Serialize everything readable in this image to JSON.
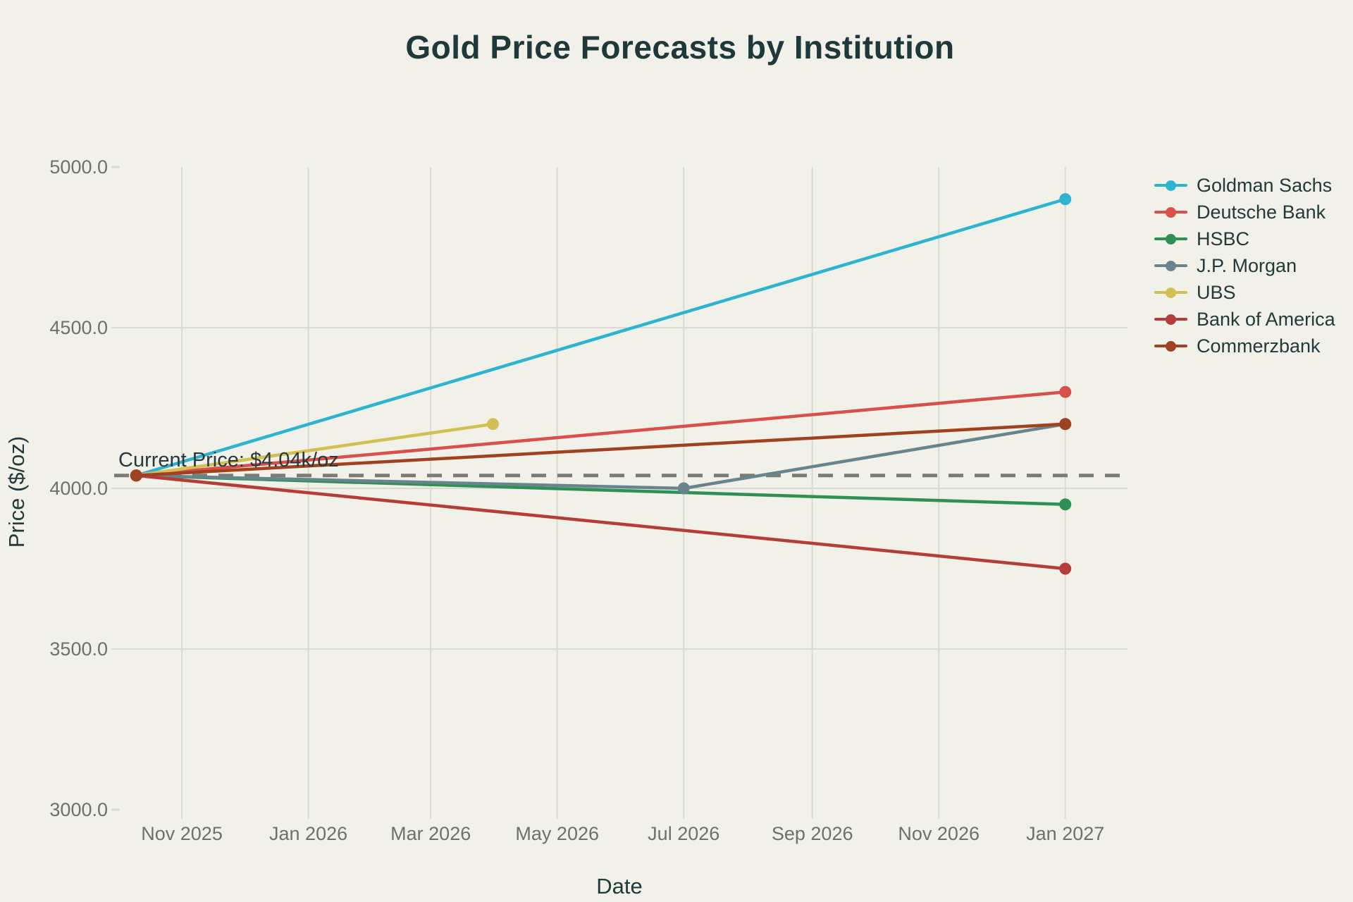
{
  "title": "Gold Price Forecasts by Institution",
  "colors": {
    "background": "#f1f1e9",
    "title_text": "#1e383c",
    "axis_label_text": "#213a3c",
    "tick_text": "#6d716c",
    "grid": "#d9dad2",
    "dashed_line": "#7c7c76",
    "annotation_text": "#27393b"
  },
  "chart_data": {
    "type": "line",
    "title": "Gold Price Forecasts by Institution",
    "xlabel": "Date",
    "ylabel": "Price ($/oz)",
    "legend_position": "right",
    "grid": true,
    "x_domain": [
      "2025-09-28",
      "2027-01-31"
    ],
    "ylim": [
      3000,
      5000
    ],
    "x_ticks": [
      {
        "date": "2025-11-01",
        "label": "Nov 2025"
      },
      {
        "date": "2026-01-01",
        "label": "Jan 2026"
      },
      {
        "date": "2026-03-01",
        "label": "Mar 2026"
      },
      {
        "date": "2026-05-01",
        "label": "May 2026"
      },
      {
        "date": "2026-07-01",
        "label": "Jul 2026"
      },
      {
        "date": "2026-09-01",
        "label": "Sep 2026"
      },
      {
        "date": "2026-11-01",
        "label": "Nov 2026"
      },
      {
        "date": "2027-01-01",
        "label": "Jan 2027"
      }
    ],
    "y_ticks": [
      {
        "value": 5000,
        "label": "5000.0"
      },
      {
        "value": 4500,
        "label": "4500.0"
      },
      {
        "value": 4000,
        "label": "4000.0"
      },
      {
        "value": 3500,
        "label": "3500.0"
      },
      {
        "value": 3000,
        "label": "3000.0"
      }
    ],
    "grid_y_values": [
      4500,
      4000,
      3500
    ],
    "current_price": {
      "label": "Current Price: $4.04k/oz",
      "value": 4040,
      "date": "2025-10-10"
    },
    "series": [
      {
        "name": "Goldman Sachs",
        "color": "#2eb4d1",
        "points": [
          {
            "date": "2025-10-10",
            "value": 4040
          },
          {
            "date": "2027-01-01",
            "value": 4900
          }
        ]
      },
      {
        "name": "Deutsche Bank",
        "color": "#d94f4b",
        "points": [
          {
            "date": "2025-10-10",
            "value": 4040
          },
          {
            "date": "2027-01-01",
            "value": 4300
          }
        ]
      },
      {
        "name": "HSBC",
        "color": "#2e9055",
        "points": [
          {
            "date": "2025-10-10",
            "value": 4040
          },
          {
            "date": "2027-01-01",
            "value": 3950
          }
        ]
      },
      {
        "name": "J.P. Morgan",
        "color": "#68858e",
        "points": [
          {
            "date": "2025-10-10",
            "value": 4040
          },
          {
            "date": "2026-07-01",
            "value": 4000
          },
          {
            "date": "2027-01-01",
            "value": 4200
          }
        ]
      },
      {
        "name": "UBS",
        "color": "#d3c052",
        "points": [
          {
            "date": "2025-10-10",
            "value": 4040
          },
          {
            "date": "2026-03-31",
            "value": 4200
          }
        ]
      },
      {
        "name": "Bank of America",
        "color": "#b33d39",
        "points": [
          {
            "date": "2025-10-10",
            "value": 4040
          },
          {
            "date": "2027-01-01",
            "value": 3750
          }
        ]
      },
      {
        "name": "Commerzbank",
        "color": "#a0421f",
        "points": [
          {
            "date": "2025-10-10",
            "value": 4040
          },
          {
            "date": "2027-01-01",
            "value": 4200
          }
        ]
      }
    ]
  }
}
